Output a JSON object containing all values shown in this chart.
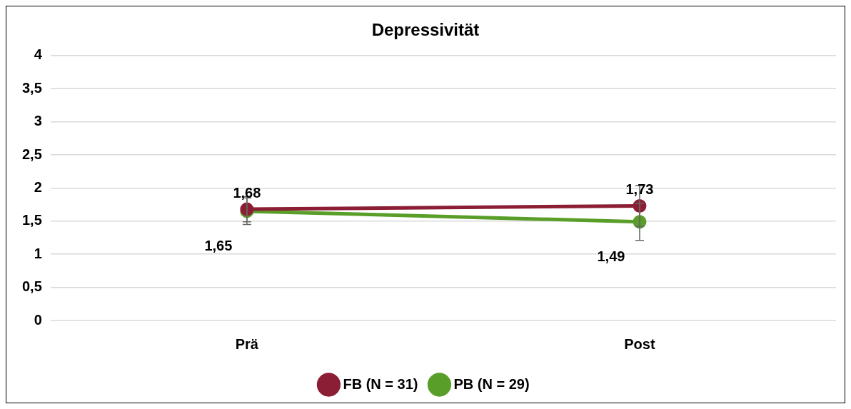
{
  "chart_data": {
    "type": "line",
    "title": "Depressivität",
    "categories": [
      "Prä",
      "Post"
    ],
    "series": [
      {
        "name": "FB (N = 31)",
        "color": "#8b1e35",
        "values": [
          1.68,
          1.73
        ],
        "errors": [
          0.19,
          0.31
        ],
        "value_labels": [
          "1,68",
          "1,73"
        ]
      },
      {
        "name": "PB (N = 29)",
        "color": "#5a9e2a",
        "values": [
          1.65,
          1.49
        ],
        "errors": [
          0.2,
          0.28
        ],
        "value_labels": [
          "1,65",
          "1,49"
        ]
      }
    ],
    "ylim": [
      0,
      4
    ],
    "yticks": [
      0,
      {
        "value": 0.5,
        "label": "0,5"
      },
      1,
      {
        "value": 1.5,
        "label": "1,5"
      },
      2,
      {
        "value": 2.5,
        "label": "2,5"
      },
      3,
      {
        "value": 3.5,
        "label": "3,5"
      },
      4
    ],
    "grid": "y",
    "legend": "bottom",
    "marker": "circle",
    "line_style": "solid"
  }
}
